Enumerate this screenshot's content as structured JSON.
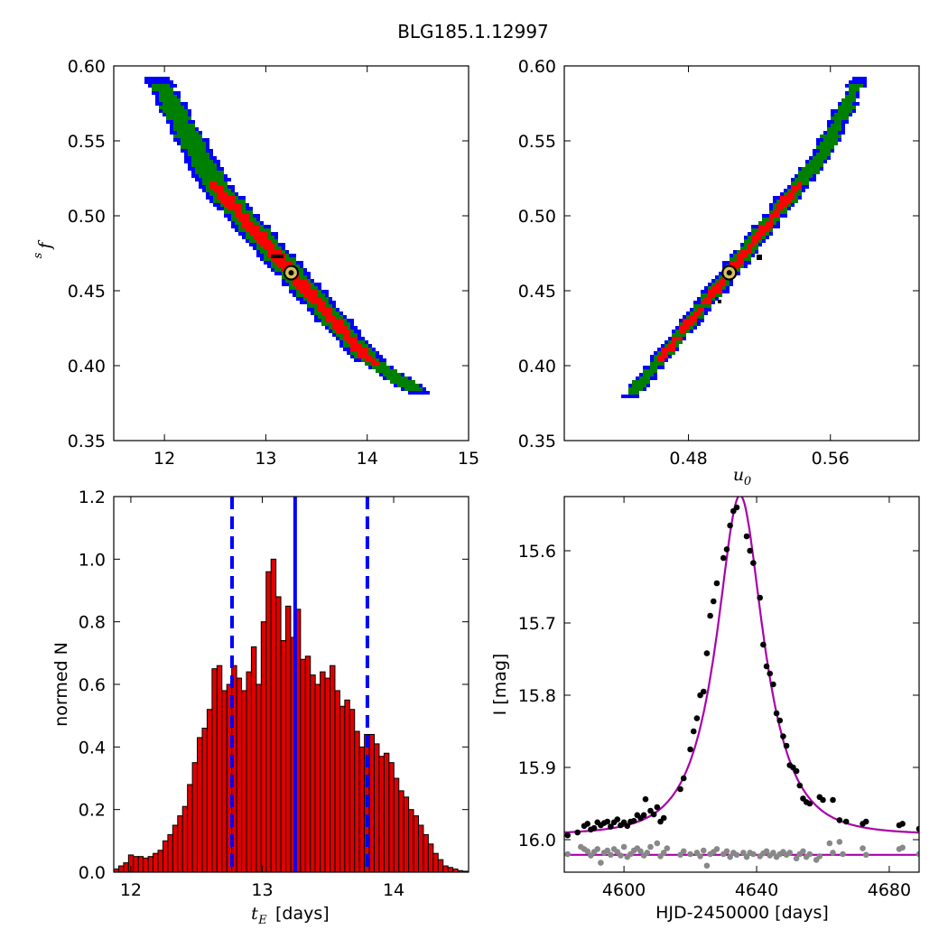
{
  "title": "BLG185.1.12997",
  "colors": {
    "sigma3": "#0000ff",
    "sigma2": "#008000",
    "sigma1": "#ff0000",
    "bar": "#dd0000",
    "vline": "#0000ff",
    "model": "#aa00aa",
    "obs": "#000000",
    "resid": "#888888",
    "marker": "#d8c060"
  },
  "chart_data": [
    {
      "type": "heatmap",
      "name": "tE-fs",
      "xlabel": "",
      "ylabel": "f_s",
      "xlim": [
        11.5,
        15.0
      ],
      "ylim": [
        0.35,
        0.6
      ],
      "xticks": [
        "12",
        "13",
        "14",
        "15"
      ],
      "yticks": [
        "0.35",
        "0.40",
        "0.45",
        "0.50",
        "0.55",
        "0.60"
      ],
      "ridge": [
        [
          11.92,
          0.593
        ],
        [
          12.5,
          0.52
        ],
        [
          13.25,
          0.462
        ],
        [
          14.0,
          0.405
        ],
        [
          14.55,
          0.38
        ]
      ],
      "best_fit": [
        13.25,
        0.462
      ],
      "levels": [
        "1-sigma",
        "2-sigma",
        "3-sigma"
      ]
    },
    {
      "type": "heatmap",
      "name": "u0-fs",
      "xlabel": "u_0",
      "ylabel": "",
      "xlim": [
        0.41,
        0.61
      ],
      "ylim": [
        0.35,
        0.6
      ],
      "xticks": [
        "0.48",
        "0.56"
      ],
      "yticks": [
        "0.35",
        "0.40",
        "0.45",
        "0.50",
        "0.55",
        "0.60"
      ],
      "ridge": [
        [
          0.447,
          0.379
        ],
        [
          0.503,
          0.462
        ],
        [
          0.555,
          0.54
        ],
        [
          0.577,
          0.593
        ]
      ],
      "best_fit": [
        0.503,
        0.462
      ],
      "levels": [
        "1-sigma",
        "2-sigma",
        "3-sigma"
      ]
    },
    {
      "type": "bar",
      "name": "tE-histogram",
      "xlabel": "t_E [days]",
      "ylabel": "normed N",
      "xlim": [
        11.87,
        14.57
      ],
      "ylim": [
        0.0,
        1.2
      ],
      "xticks": [
        "12",
        "13",
        "14"
      ],
      "yticks": [
        "0.0",
        "0.2",
        "0.4",
        "0.6",
        "0.8",
        "1.0",
        "1.2"
      ],
      "bin_start": 11.87,
      "bin_width": 0.0374,
      "values": [
        0.01,
        0.02,
        0.03,
        0.055,
        0.05,
        0.05,
        0.045,
        0.05,
        0.06,
        0.07,
        0.1,
        0.12,
        0.15,
        0.18,
        0.21,
        0.28,
        0.35,
        0.43,
        0.46,
        0.52,
        0.65,
        0.66,
        0.58,
        0.6,
        0.66,
        0.62,
        0.58,
        0.64,
        0.72,
        0.6,
        0.8,
        0.96,
        1.0,
        0.88,
        0.74,
        0.85,
        0.75,
        0.84,
        0.68,
        0.69,
        0.63,
        0.6,
        0.64,
        0.62,
        0.66,
        0.58,
        0.53,
        0.55,
        0.52,
        0.45,
        0.4,
        0.44,
        0.44,
        0.41,
        0.37,
        0.38,
        0.35,
        0.3,
        0.26,
        0.24,
        0.2,
        0.18,
        0.15,
        0.12,
        0.09,
        0.06,
        0.04,
        0.02,
        0.015,
        0.01,
        0.005,
        0.003
      ],
      "median": 13.25,
      "interval": [
        12.77,
        13.8
      ]
    },
    {
      "type": "line",
      "name": "light-curve",
      "xlabel": "HJD-2450000 [days]",
      "ylabel": "I [mag]",
      "xlim": [
        4582,
        4689
      ],
      "ylim": [
        16.045,
        15.525
      ],
      "xticks": [
        "4600",
        "4640",
        "4680"
      ],
      "yticks": [
        "15.6",
        "15.7",
        "15.8",
        "15.9",
        "16.0"
      ],
      "model": {
        "t0": 4635.0,
        "tE": 13.25,
        "u0": 0.503,
        "fs": 0.462,
        "I_base": 15.993
      },
      "baseline_resid": 16.021,
      "observed": [
        [
          4583,
          15.994
        ],
        [
          4586,
          15.99
        ],
        [
          4588,
          15.981
        ],
        [
          4589,
          15.978
        ],
        [
          4590,
          15.986
        ],
        [
          4591,
          15.984
        ],
        [
          4592,
          15.976
        ],
        [
          4593,
          15.98
        ],
        [
          4594,
          15.977
        ],
        [
          4595,
          15.975
        ],
        [
          4596,
          15.982
        ],
        [
          4597,
          15.976
        ],
        [
          4598,
          15.972
        ],
        [
          4599,
          15.98
        ],
        [
          4600,
          15.976
        ],
        [
          4601,
          15.981
        ],
        [
          4602,
          15.975
        ],
        [
          4603,
          15.974
        ],
        [
          4604,
          15.966
        ],
        [
          4605,
          15.97
        ],
        [
          4606,
          15.966
        ],
        [
          4606.5,
          15.944
        ],
        [
          4608,
          15.96
        ],
        [
          4609,
          15.965
        ],
        [
          4610,
          15.955
        ],
        [
          4611,
          15.975
        ],
        [
          4612,
          15.97
        ],
        [
          4617,
          15.93
        ],
        [
          4618,
          15.915
        ],
        [
          4620,
          15.875
        ],
        [
          4621,
          15.85
        ],
        [
          4622,
          15.832
        ],
        [
          4623,
          15.8
        ],
        [
          4624,
          15.795
        ],
        [
          4625,
          15.742
        ],
        [
          4626,
          15.69
        ],
        [
          4627,
          15.67
        ],
        [
          4628,
          15.645
        ],
        [
          4630,
          15.61
        ],
        [
          4631,
          15.598
        ],
        [
          4632,
          15.565
        ],
        [
          4633,
          15.545
        ],
        [
          4634,
          15.54
        ],
        [
          4637,
          15.58
        ],
        [
          4638,
          15.6
        ],
        [
          4639,
          15.617
        ],
        [
          4641,
          15.665
        ],
        [
          4642,
          15.73
        ],
        [
          4643,
          15.76
        ],
        [
          4644,
          15.77
        ],
        [
          4645,
          15.785
        ],
        [
          4646,
          15.825
        ],
        [
          4647,
          15.835
        ],
        [
          4648,
          15.857
        ],
        [
          4649,
          15.87
        ],
        [
          4650,
          15.897
        ],
        [
          4651,
          15.9
        ],
        [
          4652,
          15.905
        ],
        [
          4653,
          15.925
        ],
        [
          4654,
          15.943
        ],
        [
          4655,
          15.948
        ],
        [
          4656,
          15.95
        ],
        [
          4659,
          15.941
        ],
        [
          4660,
          15.945
        ],
        [
          4663,
          15.945
        ],
        [
          4665,
          15.973
        ],
        [
          4667,
          15.975
        ],
        [
          4672,
          15.978
        ],
        [
          4673,
          15.975
        ],
        [
          4683,
          15.98
        ],
        [
          4684,
          15.978
        ],
        [
          4689,
          15.985
        ]
      ],
      "residuals": [
        [
          4583,
          16.02
        ],
        [
          4587,
          16.01
        ],
        [
          4588,
          16.013
        ],
        [
          4589,
          16.016
        ],
        [
          4590,
          16.022
        ],
        [
          4591,
          16.017
        ],
        [
          4592,
          16.013
        ],
        [
          4593,
          16.032
        ],
        [
          4594,
          16.018
        ],
        [
          4595,
          16.015
        ],
        [
          4596,
          16.021
        ],
        [
          4597,
          16.013
        ],
        [
          4598,
          16.017
        ],
        [
          4599,
          16.022
        ],
        [
          4600,
          16.01
        ],
        [
          4601,
          16.024
        ],
        [
          4602,
          16.02
        ],
        [
          4603,
          16.015
        ],
        [
          4604,
          16.012
        ],
        [
          4605,
          16.016
        ],
        [
          4606,
          16.022
        ],
        [
          4607,
          16.018
        ],
        [
          4608,
          16.01
        ],
        [
          4610,
          16.005
        ],
        [
          4611,
          16.023
        ],
        [
          4612,
          16.018
        ],
        [
          4613,
          16.012
        ],
        [
          4617,
          16.021
        ],
        [
          4618,
          16.016
        ],
        [
          4620,
          16.02
        ],
        [
          4622,
          16.018
        ],
        [
          4623,
          16.023
        ],
        [
          4624,
          16.015
        ],
        [
          4625,
          16.036
        ],
        [
          4626,
          16.02
        ],
        [
          4627,
          16.017
        ],
        [
          4628,
          16.013
        ],
        [
          4630,
          16.02
        ],
        [
          4631,
          16.016
        ],
        [
          4632,
          16.024
        ],
        [
          4633,
          16.018
        ],
        [
          4634,
          16.021
        ],
        [
          4636,
          16.018
        ],
        [
          4637,
          16.024
        ],
        [
          4638,
          16.018
        ],
        [
          4639,
          16.02
        ],
        [
          4641,
          16.023
        ],
        [
          4642,
          16.019
        ],
        [
          4643,
          16.016
        ],
        [
          4644,
          16.022
        ],
        [
          4645,
          16.018
        ],
        [
          4646,
          16.024
        ],
        [
          4647,
          16.02
        ],
        [
          4648,
          16.017
        ],
        [
          4649,
          16.021
        ],
        [
          4650,
          16.018
        ],
        [
          4652,
          16.026
        ],
        [
          4653,
          16.02
        ],
        [
          4654,
          16.016
        ],
        [
          4655,
          16.024
        ],
        [
          4656,
          16.02
        ],
        [
          4658,
          16.028
        ],
        [
          4659,
          16.023
        ],
        [
          4662,
          16.005
        ],
        [
          4663,
          16.018
        ],
        [
          4665,
          16.003
        ],
        [
          4666,
          16.02
        ],
        [
          4672,
          16.012
        ],
        [
          4673,
          16.021
        ],
        [
          4683,
          16.013
        ],
        [
          4684,
          16.011
        ],
        [
          4689,
          16.02
        ]
      ]
    }
  ]
}
